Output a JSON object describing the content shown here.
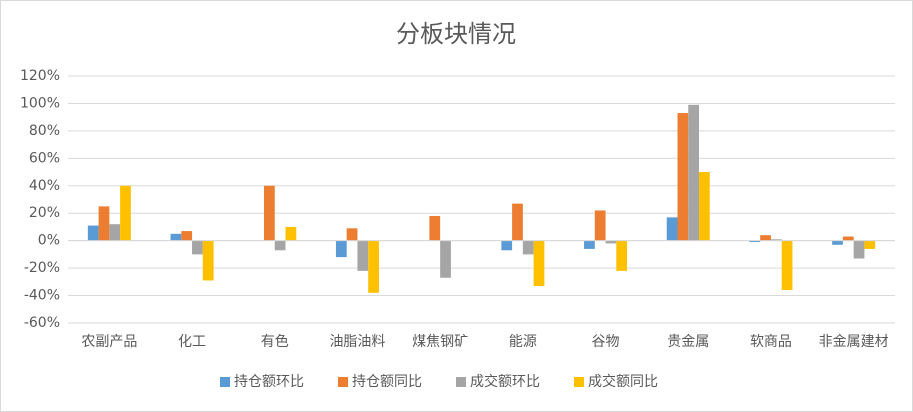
{
  "chart_data": {
    "type": "bar",
    "title": "分板块情况",
    "categories": [
      "农副产品",
      "化工",
      "有色",
      "油脂油料",
      "煤焦钢矿",
      "能源",
      "谷物",
      "贵金属",
      "软商品",
      "非金属建材"
    ],
    "series": [
      {
        "name": "持仓额环比",
        "color": "#5b9bd5",
        "values": [
          11,
          5,
          0,
          -12,
          0,
          -7,
          -6,
          17,
          -1,
          -3
        ]
      },
      {
        "name": "持仓额同比",
        "color": "#ed7d31",
        "values": [
          25,
          7,
          40,
          9,
          18,
          27,
          22,
          93,
          4,
          3
        ]
      },
      {
        "name": "成交额环比",
        "color": "#a5a5a5",
        "values": [
          12,
          -10,
          -7,
          -22,
          -27,
          -10,
          -2,
          99,
          1,
          -13
        ]
      },
      {
        "name": "成交额同比",
        "color": "#ffc000",
        "values": [
          40,
          -29,
          10,
          -38,
          0,
          -33,
          -22,
          50,
          -36,
          -6
        ]
      }
    ],
    "ylim": [
      -60,
      120
    ],
    "yticks": [
      {
        "value": -60,
        "label": "-60%"
      },
      {
        "value": -40,
        "label": "-40%"
      },
      {
        "value": -20,
        "label": "-20%"
      },
      {
        "value": 0,
        "label": "0%"
      },
      {
        "value": 20,
        "label": "20%"
      },
      {
        "value": 40,
        "label": "40%"
      },
      {
        "value": 60,
        "label": "60%"
      },
      {
        "value": 80,
        "label": "80%"
      },
      {
        "value": 100,
        "label": "100%"
      },
      {
        "value": 120,
        "label": "120%"
      }
    ],
    "grid": true,
    "legend": "bottom"
  }
}
